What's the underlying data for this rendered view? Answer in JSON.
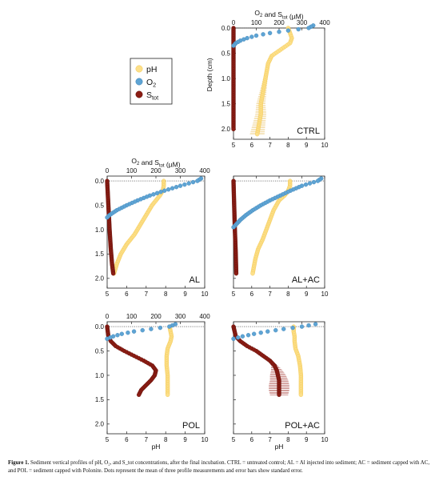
{
  "caption": {
    "label": "Figure 1.",
    "text": "Sediment vertical profiles of pH, O₂, and S_tot concentrations, after the final incubation. CTRL = untreated control; AL = Al injected into sediment; AC = sediment capped with AC, and POL = sediment capped with Polonite. Dots represent the mean of three profile measurements and error bars show standard error."
  },
  "legend": {
    "placement": "left of CTRL panel",
    "entries": [
      {
        "label": "pH",
        "color": "#fde08a"
      },
      {
        "label": "O₂",
        "color": "#5ea4d4"
      },
      {
        "label": "S_tot",
        "color": "#8b1d14"
      }
    ]
  },
  "colors": {
    "ph": "#fde08a",
    "ph_edge": "#f1c550",
    "o2": "#5ea4d4",
    "o2_edge": "#3b7fb3",
    "stot": "#8b1d14",
    "stot_edge": "#5e0f09",
    "error": "#a33a34"
  },
  "chart_data": [
    {
      "type": "line",
      "panel": "CTRL",
      "label": "CTRL",
      "top_axis_label": "O₂ and S_tot (µM)",
      "y_axis_label": "Depth (cm)",
      "bottom_axis_label": "",
      "xlim_conc": [
        0,
        400
      ],
      "xticks_conc": [
        0,
        100,
        200,
        300,
        400
      ],
      "xlim_ph": [
        5,
        10
      ],
      "xticks_ph": [
        5,
        6,
        7,
        8,
        9,
        10
      ],
      "ylim_depth": [
        0,
        2.2
      ],
      "yticks_depth": [
        "0.0",
        "0.5",
        "1.0",
        "1.5",
        "2.0"
      ],
      "show_top_labels": true,
      "show_bottom_labels": true,
      "show_y_labels": true,
      "dotted_line_depth": 0,
      "series": [
        {
          "name": "pH",
          "kind": "ph",
          "depth": [
            0,
            0.1,
            0.2,
            0.3,
            0.4,
            0.55,
            0.7,
            0.9,
            1.1,
            1.3,
            1.5,
            1.7,
            1.9,
            2.1
          ],
          "values": [
            8.0,
            8.1,
            8.2,
            8.1,
            7.7,
            7.1,
            6.9,
            6.8,
            6.7,
            6.6,
            6.5,
            6.5,
            6.4,
            6.3
          ],
          "error": [
            0,
            0,
            0,
            0,
            0,
            0.05,
            0.05,
            0.1,
            0.15,
            0.2,
            0.25,
            0.3,
            0.35,
            0.4
          ]
        },
        {
          "name": "O₂",
          "kind": "o2",
          "depth": [
            -0.05,
            0,
            0.05,
            0.1,
            0.15,
            0.2,
            0.25,
            0.3,
            0.35
          ],
          "values": [
            350,
            330,
            240,
            160,
            100,
            60,
            30,
            10,
            0
          ]
        },
        {
          "name": "S_tot",
          "kind": "stot",
          "depth": [
            0,
            0.4,
            0.8,
            1.2,
            1.6,
            2.0
          ],
          "values": [
            0,
            0,
            0,
            0,
            0,
            0
          ]
        }
      ]
    },
    {
      "type": "line",
      "panel": "AL",
      "label": "AL",
      "top_axis_label": "O₂ and S_tot (µM)",
      "y_axis_label": "",
      "bottom_axis_label": "",
      "xlim_conc": [
        0,
        400
      ],
      "xticks_conc": [
        0,
        100,
        200,
        300,
        400
      ],
      "xlim_ph": [
        5,
        10
      ],
      "xticks_ph": [
        5,
        6,
        7,
        8,
        9,
        10
      ],
      "ylim_depth": [
        -0.1,
        2.2
      ],
      "yticks_depth": [
        "0.0",
        "0.5",
        "1.0",
        "1.5",
        "2.0"
      ],
      "show_top_labels": true,
      "show_bottom_labels": true,
      "show_y_labels": true,
      "dotted_line_depth": 0,
      "series": [
        {
          "name": "pH",
          "kind": "ph",
          "depth": [
            0,
            0.1,
            0.2,
            0.3,
            0.5,
            0.7,
            0.9,
            1.1,
            1.3,
            1.5,
            1.7,
            1.9
          ],
          "values": [
            7.9,
            7.9,
            7.85,
            7.7,
            7.3,
            7.0,
            6.7,
            6.4,
            6.0,
            5.7,
            5.5,
            5.35
          ],
          "error": []
        },
        {
          "name": "O₂",
          "kind": "o2",
          "depth": [
            -0.05,
            0,
            0.1,
            0.2,
            0.3,
            0.4,
            0.5,
            0.6,
            0.7,
            0.75
          ],
          "values": [
            385,
            370,
            300,
            235,
            175,
            125,
            80,
            40,
            10,
            0
          ]
        },
        {
          "name": "S_tot",
          "kind": "stot",
          "depth": [
            0,
            0.5,
            1.0,
            1.4,
            1.7,
            1.9
          ],
          "values": [
            0,
            5,
            10,
            15,
            20,
            25
          ]
        }
      ]
    },
    {
      "type": "line",
      "panel": "AL+AC",
      "label": "AL+AC",
      "top_axis_label": "",
      "y_axis_label": "",
      "bottom_axis_label": "",
      "xlim_conc": [
        0,
        400
      ],
      "xticks_conc": [
        0,
        100,
        200,
        300,
        400
      ],
      "xlim_ph": [
        5,
        10
      ],
      "xticks_ph": [
        5,
        6,
        7,
        8,
        9,
        10
      ],
      "ylim_depth": [
        -0.1,
        2.2
      ],
      "yticks_depth": [
        "0.0",
        "0.5",
        "1.0",
        "1.5",
        "2.0"
      ],
      "show_top_labels": false,
      "show_bottom_labels": true,
      "show_y_labels": false,
      "dotted_line_depth": 0,
      "series": [
        {
          "name": "pH",
          "kind": "ph",
          "depth": [
            0,
            0.1,
            0.2,
            0.3,
            0.4,
            0.6,
            0.8,
            1.0,
            1.2,
            1.4,
            1.6,
            1.8,
            1.9
          ],
          "values": [
            8.1,
            8.1,
            8.0,
            7.8,
            7.5,
            7.2,
            7.0,
            6.8,
            6.6,
            6.35,
            6.2,
            6.1,
            6.05
          ],
          "error": []
        },
        {
          "name": "O₂",
          "kind": "o2",
          "depth": [
            -0.05,
            0,
            0.1,
            0.2,
            0.3,
            0.4,
            0.5,
            0.6,
            0.7,
            0.8,
            0.9,
            0.95
          ],
          "values": [
            385,
            370,
            300,
            250,
            205,
            160,
            120,
            85,
            55,
            30,
            10,
            0
          ]
        },
        {
          "name": "S_tot",
          "kind": "stot",
          "depth": [
            0,
            0.5,
            1.0,
            1.5,
            1.9
          ],
          "values": [
            0,
            3,
            6,
            10,
            12
          ]
        }
      ]
    },
    {
      "type": "line",
      "panel": "POL",
      "label": "POL",
      "top_axis_label": "",
      "y_axis_label": "",
      "bottom_axis_label": "pH",
      "xlim_conc": [
        0,
        400
      ],
      "xticks_conc": [
        0,
        100,
        200,
        300,
        400
      ],
      "xlim_ph": [
        5,
        10
      ],
      "xticks_ph": [
        5,
        6,
        7,
        8,
        9,
        10
      ],
      "ylim_depth": [
        -0.1,
        2.2
      ],
      "yticks_depth": [
        "0.0",
        "0.5",
        "1.0",
        "1.5",
        "2.0"
      ],
      "show_top_labels": true,
      "show_bottom_labels": true,
      "show_y_labels": true,
      "dotted_line_depth": 0,
      "series": [
        {
          "name": "pH",
          "kind": "ph",
          "depth": [
            0,
            0.1,
            0.2,
            0.3,
            0.45,
            0.6,
            0.8,
            1.0,
            1.2,
            1.4
          ],
          "values": [
            8.2,
            8.25,
            8.3,
            8.25,
            8.1,
            8.05,
            8.05,
            8.1,
            8.1,
            8.1
          ],
          "error": []
        },
        {
          "name": "O₂",
          "kind": "o2",
          "depth": [
            -0.05,
            0,
            0.05,
            0.1,
            0.15,
            0.2,
            0.25
          ],
          "values": [
            280,
            255,
            180,
            110,
            60,
            25,
            0
          ]
        },
        {
          "name": "S_tot",
          "kind": "stot",
          "depth": [
            0,
            0.2,
            0.3,
            0.4,
            0.5,
            0.6,
            0.7,
            0.8,
            0.9,
            1.0,
            1.1,
            1.2,
            1.3,
            1.4
          ],
          "values": [
            0,
            5,
            15,
            35,
            70,
            110,
            150,
            185,
            200,
            195,
            180,
            160,
            140,
            130
          ]
        }
      ]
    },
    {
      "type": "line",
      "panel": "POL+AC",
      "label": "POL+AC",
      "top_axis_label": "",
      "y_axis_label": "",
      "bottom_axis_label": "pH",
      "xlim_conc": [
        0,
        400
      ],
      "xticks_conc": [
        0,
        100,
        200,
        300,
        400
      ],
      "xlim_ph": [
        5,
        10
      ],
      "xticks_ph": [
        5,
        6,
        7,
        8,
        9,
        10
      ],
      "ylim_depth": [
        -0.1,
        2.2
      ],
      "yticks_depth": [
        "0.0",
        "0.5",
        "1.0",
        "1.5",
        "2.0"
      ],
      "show_top_labels": false,
      "show_bottom_labels": true,
      "show_y_labels": false,
      "dotted_line_depth": 0,
      "series": [
        {
          "name": "pH",
          "kind": "ph",
          "depth": [
            0,
            0.1,
            0.2,
            0.3,
            0.45,
            0.6,
            0.8,
            1.0,
            1.2,
            1.4
          ],
          "values": [
            8.3,
            8.3,
            8.35,
            8.35,
            8.4,
            8.55,
            8.65,
            8.7,
            8.7,
            8.7
          ],
          "error": []
        },
        {
          "name": "O₂",
          "kind": "o2",
          "depth": [
            -0.05,
            0,
            0.05,
            0.1,
            0.15,
            0.2,
            0.25
          ],
          "values": [
            360,
            300,
            220,
            150,
            90,
            40,
            0
          ]
        },
        {
          "name": "S_tot",
          "kind": "stot",
          "depth": [
            0,
            0.2,
            0.3,
            0.4,
            0.5,
            0.6,
            0.7,
            0.8,
            0.9,
            1.0,
            1.1,
            1.2,
            1.3,
            1.4
          ],
          "values": [
            0,
            10,
            30,
            60,
            100,
            130,
            160,
            180,
            190,
            195,
            200,
            200,
            200,
            200
          ],
          "error": [
            0,
            0,
            0,
            0,
            0,
            5,
            10,
            15,
            25,
            35,
            40,
            45,
            45,
            40
          ]
        }
      ]
    }
  ]
}
